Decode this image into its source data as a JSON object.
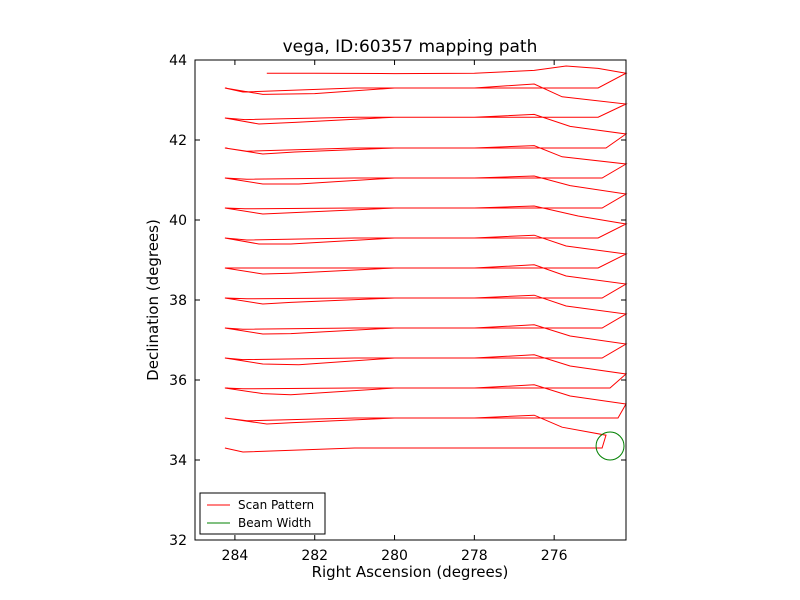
{
  "chart_data": {
    "type": "line",
    "title": "vega, ID:60357 mapping path",
    "xlabel": "Right Ascension (degrees)",
    "ylabel": "Declination (degrees)",
    "xlim": [
      285,
      274.2
    ],
    "ylim": [
      32,
      44
    ],
    "x_inverted": true,
    "xticks": [
      284,
      282,
      280,
      278,
      276
    ],
    "yticks": [
      32,
      34,
      36,
      38,
      40,
      42,
      44
    ],
    "xtick_labels": [
      "284",
      "282",
      "280",
      "278",
      "276"
    ],
    "ytick_labels": [
      "32",
      "34",
      "36",
      "38",
      "40",
      "42",
      "44"
    ],
    "grid": false,
    "legend": {
      "placement": "lower-left",
      "entries": [
        {
          "label": "Scan Pattern",
          "color": "#ff0000"
        },
        {
          "label": "Beam Width",
          "color": "#008000"
        }
      ]
    },
    "series": [
      {
        "name": "Scan Pattern",
        "color": "#ff0000",
        "x": [
          283.2,
          282.0,
          280.0,
          278.0,
          276.5,
          275.7,
          274.9,
          274.2,
          274.9,
          278.0,
          281.0,
          283.8,
          284.25,
          283.3,
          282.0,
          280.0,
          278.0,
          276.5,
          275.8,
          274.2,
          274.9,
          278.0,
          281.0,
          283.75,
          284.25,
          283.4,
          282.5,
          280.0,
          278.0,
          276.5,
          275.6,
          274.2,
          274.7,
          278.0,
          281.0,
          283.7,
          284.25,
          283.3,
          282.5,
          280.0,
          278.0,
          276.5,
          275.8,
          274.2,
          274.8,
          278.0,
          281.0,
          283.7,
          284.25,
          283.3,
          282.4,
          280.0,
          278.0,
          276.5,
          275.6,
          274.2,
          274.8,
          278.0,
          281.0,
          283.75,
          284.25,
          283.3,
          282.6,
          280.0,
          278.0,
          276.5,
          275.4,
          274.2,
          274.9,
          278.0,
          281.0,
          283.7,
          284.25,
          283.4,
          282.6,
          280.0,
          278.0,
          276.5,
          275.7,
          274.2,
          274.9,
          278.0,
          281.0,
          283.8,
          284.25,
          283.3,
          282.6,
          280.0,
          278.0,
          276.5,
          275.7,
          274.2,
          274.8,
          278.0,
          281.0,
          283.7,
          284.25,
          283.3,
          282.6,
          280.0,
          278.0,
          276.5,
          275.7,
          274.2,
          274.8,
          278.0,
          281.0,
          283.8,
          284.25,
          283.3,
          282.6,
          280.0,
          278.0,
          276.5,
          275.6,
          274.2,
          274.8,
          278.0,
          281.0,
          283.8,
          284.25,
          283.3,
          282.4,
          280.0,
          278.0,
          276.5,
          275.6,
          274.2,
          274.6,
          278.0,
          281.0,
          283.8,
          284.25,
          283.3,
          282.6,
          280.0,
          278.0,
          276.5,
          275.6,
          274.2,
          274.4,
          278.0,
          281.0,
          283.7,
          284.25,
          283.2,
          282.6,
          280.0,
          278.0,
          276.5,
          275.8,
          274.7,
          274.8,
          278.0,
          281.0,
          283.8,
          284.25
        ],
        "y": [
          43.67,
          43.67,
          43.66,
          43.67,
          43.74,
          43.85,
          43.79,
          43.67,
          43.3,
          43.3,
          43.3,
          43.2,
          43.3,
          43.14,
          43.16,
          43.3,
          43.3,
          43.4,
          43.08,
          42.9,
          42.57,
          42.57,
          42.57,
          42.51,
          42.55,
          42.4,
          42.44,
          42.57,
          42.57,
          42.64,
          42.34,
          42.15,
          41.8,
          41.8,
          41.8,
          41.72,
          41.8,
          41.65,
          41.7,
          41.8,
          41.8,
          41.86,
          41.58,
          41.4,
          41.05,
          41.05,
          41.05,
          41.02,
          41.05,
          40.9,
          40.9,
          41.05,
          41.05,
          41.1,
          40.86,
          40.65,
          40.3,
          40.3,
          40.3,
          40.28,
          40.3,
          40.15,
          40.18,
          40.3,
          40.3,
          40.35,
          40.1,
          39.9,
          39.55,
          39.55,
          39.55,
          39.5,
          39.55,
          39.4,
          39.4,
          39.55,
          39.55,
          39.62,
          39.35,
          39.15,
          38.8,
          38.8,
          38.8,
          38.8,
          38.8,
          38.65,
          38.67,
          38.8,
          38.8,
          38.88,
          38.6,
          38.4,
          38.05,
          38.05,
          38.05,
          38.03,
          38.05,
          37.9,
          37.94,
          38.05,
          38.05,
          38.12,
          37.85,
          37.65,
          37.3,
          37.3,
          37.3,
          37.27,
          37.3,
          37.15,
          37.16,
          37.3,
          37.3,
          37.38,
          37.1,
          36.9,
          36.55,
          36.55,
          36.55,
          36.51,
          36.55,
          36.4,
          36.38,
          36.55,
          36.55,
          36.63,
          36.35,
          36.15,
          35.8,
          35.8,
          35.8,
          35.78,
          35.8,
          35.66,
          35.63,
          35.8,
          35.8,
          35.88,
          35.6,
          35.4,
          35.05,
          35.05,
          35.05,
          34.98,
          35.05,
          34.9,
          34.93,
          35.05,
          35.05,
          35.12,
          34.82,
          34.62,
          34.3,
          34.3,
          34.3,
          34.2,
          34.3
        ]
      },
      {
        "name": "Beam Width",
        "color": "#008000",
        "shape": "circle",
        "center": [
          274.6,
          34.35
        ],
        "radius_deg": 0.35
      }
    ]
  }
}
